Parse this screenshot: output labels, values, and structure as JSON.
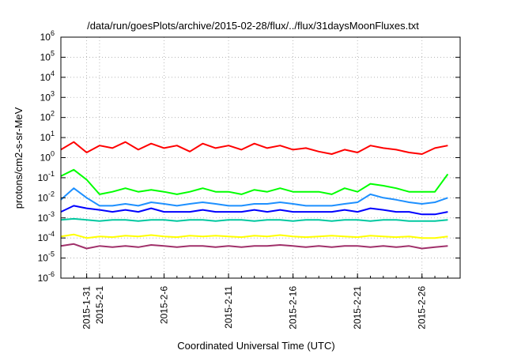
{
  "chart_data": {
    "type": "line",
    "title": "/data/run/goesPlots/archive/2015-02-28/flux/../flux/31daysMoonFluxes.txt",
    "xlabel": "Coordinated Universal Time (UTC)",
    "ylabel": "protons/cm2-s-sr-MeV",
    "yscale": "log",
    "ylim": [
      1e-06,
      1000000
    ],
    "xlim": [
      "2015-01-29",
      "2015-02-28 23:00"
    ],
    "grid": true,
    "legend": "none",
    "y_ticks": [
      {
        "value": 1e-06,
        "mantissa": "10",
        "exp": "-6"
      },
      {
        "value": 1e-05,
        "mantissa": "10",
        "exp": "-5"
      },
      {
        "value": 0.0001,
        "mantissa": "10",
        "exp": "-4"
      },
      {
        "value": 0.001,
        "mantissa": "10",
        "exp": "-3"
      },
      {
        "value": 0.01,
        "mantissa": "10",
        "exp": "-2"
      },
      {
        "value": 0.1,
        "mantissa": "10",
        "exp": "-1"
      },
      {
        "value": 1,
        "mantissa": "10",
        "exp": "0"
      },
      {
        "value": 10,
        "mantissa": "10",
        "exp": "1"
      },
      {
        "value": 100,
        "mantissa": "10",
        "exp": "2"
      },
      {
        "value": 1000,
        "mantissa": "10",
        "exp": "3"
      },
      {
        "value": 10000,
        "mantissa": "10",
        "exp": "4"
      },
      {
        "value": 100000,
        "mantissa": "10",
        "exp": "5"
      },
      {
        "value": 1000000,
        "mantissa": "10",
        "exp": "6"
      }
    ],
    "x_ticks": [
      "2015-1-31",
      "2015-2-1",
      "2015-2-6",
      "2015-2-11",
      "2015-2-16",
      "2015-2-21",
      "2015-2-26"
    ],
    "series": [
      {
        "color": "#ff0000",
        "x": [
          "2015-01-29",
          "2015-01-30",
          "2015-01-31",
          "2015-02-01",
          "2015-02-02",
          "2015-02-03",
          "2015-02-04",
          "2015-02-05",
          "2015-02-06",
          "2015-02-07",
          "2015-02-08",
          "2015-02-09",
          "2015-02-10",
          "2015-02-11",
          "2015-02-12",
          "2015-02-13",
          "2015-02-14",
          "2015-02-15",
          "2015-02-16",
          "2015-02-17",
          "2015-02-18",
          "2015-02-19",
          "2015-02-20",
          "2015-02-21",
          "2015-02-22",
          "2015-02-23",
          "2015-02-24",
          "2015-02-25",
          "2015-02-26",
          "2015-02-27",
          "2015-02-28"
        ],
        "values": [
          2.5,
          6,
          1.8,
          4,
          3,
          6,
          2.5,
          5,
          3,
          4,
          2,
          5,
          3,
          4,
          2.5,
          5,
          3,
          4,
          2.5,
          3,
          2,
          1.5,
          2.5,
          1.8,
          4,
          3,
          2.5,
          1.8,
          1.5,
          3,
          4
        ]
      },
      {
        "color": "#00ff00",
        "x": [
          "2015-01-29",
          "2015-01-30",
          "2015-01-31",
          "2015-02-01",
          "2015-02-02",
          "2015-02-03",
          "2015-02-04",
          "2015-02-05",
          "2015-02-06",
          "2015-02-07",
          "2015-02-08",
          "2015-02-09",
          "2015-02-10",
          "2015-02-11",
          "2015-02-12",
          "2015-02-13",
          "2015-02-14",
          "2015-02-15",
          "2015-02-16",
          "2015-02-17",
          "2015-02-18",
          "2015-02-19",
          "2015-02-20",
          "2015-02-21",
          "2015-02-22",
          "2015-02-23",
          "2015-02-24",
          "2015-02-25",
          "2015-02-26",
          "2015-02-27",
          "2015-02-28"
        ],
        "values": [
          0.12,
          0.25,
          0.08,
          0.015,
          0.02,
          0.03,
          0.02,
          0.025,
          0.02,
          0.015,
          0.02,
          0.03,
          0.02,
          0.02,
          0.015,
          0.025,
          0.02,
          0.03,
          0.02,
          0.02,
          0.02,
          0.015,
          0.03,
          0.02,
          0.05,
          0.04,
          0.03,
          0.02,
          0.02,
          0.02,
          0.15
        ]
      },
      {
        "color": "#1e90ff",
        "x": [
          "2015-01-29",
          "2015-01-30",
          "2015-01-31",
          "2015-02-01",
          "2015-02-02",
          "2015-02-03",
          "2015-02-04",
          "2015-02-05",
          "2015-02-06",
          "2015-02-07",
          "2015-02-08",
          "2015-02-09",
          "2015-02-10",
          "2015-02-11",
          "2015-02-12",
          "2015-02-13",
          "2015-02-14",
          "2015-02-15",
          "2015-02-16",
          "2015-02-17",
          "2015-02-18",
          "2015-02-19",
          "2015-02-20",
          "2015-02-21",
          "2015-02-22",
          "2015-02-23",
          "2015-02-24",
          "2015-02-25",
          "2015-02-26",
          "2015-02-27",
          "2015-02-28"
        ],
        "values": [
          0.008,
          0.03,
          0.01,
          0.004,
          0.004,
          0.005,
          0.004,
          0.006,
          0.005,
          0.004,
          0.005,
          0.006,
          0.005,
          0.004,
          0.004,
          0.005,
          0.005,
          0.006,
          0.005,
          0.004,
          0.004,
          0.004,
          0.005,
          0.006,
          0.015,
          0.01,
          0.008,
          0.006,
          0.005,
          0.006,
          0.01
        ]
      },
      {
        "color": "#0000ff",
        "x": [
          "2015-01-29",
          "2015-01-30",
          "2015-01-31",
          "2015-02-01",
          "2015-02-02",
          "2015-02-03",
          "2015-02-04",
          "2015-02-05",
          "2015-02-06",
          "2015-02-07",
          "2015-02-08",
          "2015-02-09",
          "2015-02-10",
          "2015-02-11",
          "2015-02-12",
          "2015-02-13",
          "2015-02-14",
          "2015-02-15",
          "2015-02-16",
          "2015-02-17",
          "2015-02-18",
          "2015-02-19",
          "2015-02-20",
          "2015-02-21",
          "2015-02-22",
          "2015-02-23",
          "2015-02-24",
          "2015-02-25",
          "2015-02-26",
          "2015-02-27",
          "2015-02-28"
        ],
        "values": [
          0.002,
          0.004,
          0.003,
          0.0025,
          0.002,
          0.0025,
          0.002,
          0.003,
          0.002,
          0.002,
          0.002,
          0.0025,
          0.002,
          0.002,
          0.002,
          0.0025,
          0.002,
          0.0025,
          0.002,
          0.002,
          0.002,
          0.002,
          0.0025,
          0.002,
          0.003,
          0.0025,
          0.002,
          0.002,
          0.0015,
          0.0015,
          0.002
        ]
      },
      {
        "color": "#00c8a0",
        "x": [
          "2015-01-29",
          "2015-01-30",
          "2015-01-31",
          "2015-02-01",
          "2015-02-02",
          "2015-02-03",
          "2015-02-04",
          "2015-02-05",
          "2015-02-06",
          "2015-02-07",
          "2015-02-08",
          "2015-02-09",
          "2015-02-10",
          "2015-02-11",
          "2015-02-12",
          "2015-02-13",
          "2015-02-14",
          "2015-02-15",
          "2015-02-16",
          "2015-02-17",
          "2015-02-18",
          "2015-02-19",
          "2015-02-20",
          "2015-02-21",
          "2015-02-22",
          "2015-02-23",
          "2015-02-24",
          "2015-02-25",
          "2015-02-26",
          "2015-02-27",
          "2015-02-28"
        ],
        "values": [
          0.0008,
          0.0009,
          0.0008,
          0.0007,
          0.0008,
          0.0008,
          0.0007,
          0.0008,
          0.0008,
          0.0007,
          0.0008,
          0.0008,
          0.0007,
          0.0008,
          0.0008,
          0.0007,
          0.0008,
          0.0008,
          0.0007,
          0.0008,
          0.0008,
          0.0007,
          0.0008,
          0.0008,
          0.0007,
          0.0008,
          0.0008,
          0.0007,
          0.0007,
          0.0007,
          0.0008
        ]
      },
      {
        "color": "#ffff00",
        "x": [
          "2015-01-29",
          "2015-01-30",
          "2015-01-31",
          "2015-02-01",
          "2015-02-02",
          "2015-02-03",
          "2015-02-04",
          "2015-02-05",
          "2015-02-06",
          "2015-02-07",
          "2015-02-08",
          "2015-02-09",
          "2015-02-10",
          "2015-02-11",
          "2015-02-12",
          "2015-02-13",
          "2015-02-14",
          "2015-02-15",
          "2015-02-16",
          "2015-02-17",
          "2015-02-18",
          "2015-02-19",
          "2015-02-20",
          "2015-02-21",
          "2015-02-22",
          "2015-02-23",
          "2015-02-24",
          "2015-02-25",
          "2015-02-26",
          "2015-02-27",
          "2015-02-28"
        ],
        "values": [
          0.00012,
          0.00015,
          0.0001,
          0.00012,
          0.00011,
          0.00013,
          0.00012,
          0.00014,
          0.00012,
          0.00011,
          0.00013,
          0.00012,
          0.00013,
          0.00012,
          0.00011,
          0.00013,
          0.00012,
          0.00014,
          0.00012,
          0.00011,
          0.00012,
          0.00013,
          0.00012,
          0.00011,
          0.00013,
          0.00012,
          0.00011,
          0.00012,
          0.0001,
          0.0001,
          0.00012
        ]
      },
      {
        "color": "#a0306a",
        "x": [
          "2015-01-29",
          "2015-01-30",
          "2015-01-31",
          "2015-02-01",
          "2015-02-02",
          "2015-02-03",
          "2015-02-04",
          "2015-02-05",
          "2015-02-06",
          "2015-02-07",
          "2015-02-08",
          "2015-02-09",
          "2015-02-10",
          "2015-02-11",
          "2015-02-12",
          "2015-02-13",
          "2015-02-14",
          "2015-02-15",
          "2015-02-16",
          "2015-02-17",
          "2015-02-18",
          "2015-02-19",
          "2015-02-20",
          "2015-02-21",
          "2015-02-22",
          "2015-02-23",
          "2015-02-24",
          "2015-02-25",
          "2015-02-26",
          "2015-02-27",
          "2015-02-28"
        ],
        "values": [
          4e-05,
          5e-05,
          3e-05,
          4e-05,
          3.5e-05,
          4e-05,
          3.5e-05,
          4.5e-05,
          4e-05,
          3.5e-05,
          4e-05,
          4e-05,
          3.5e-05,
          4e-05,
          3.5e-05,
          4e-05,
          4e-05,
          4.5e-05,
          4e-05,
          3.5e-05,
          4e-05,
          3.5e-05,
          4e-05,
          4e-05,
          3.5e-05,
          4e-05,
          3.5e-05,
          4e-05,
          3e-05,
          3.5e-05,
          4e-05
        ]
      }
    ]
  }
}
